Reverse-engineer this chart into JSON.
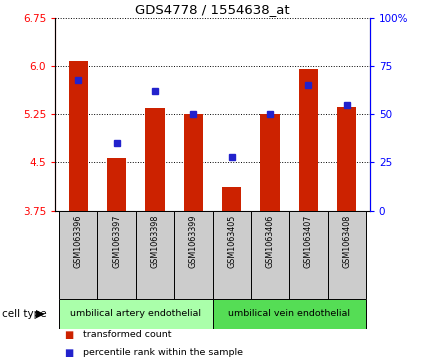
{
  "title": "GDS4778 / 1554638_at",
  "samples": [
    "GSM1063396",
    "GSM1063397",
    "GSM1063398",
    "GSM1063399",
    "GSM1063405",
    "GSM1063406",
    "GSM1063407",
    "GSM1063408"
  ],
  "transformed_counts": [
    6.08,
    4.57,
    5.35,
    5.25,
    4.12,
    5.25,
    5.95,
    5.37
  ],
  "percentile_ranks": [
    68,
    35,
    62,
    50,
    28,
    50,
    65,
    55
  ],
  "ylim_left": [
    3.75,
    6.75
  ],
  "yticks_left": [
    3.75,
    4.5,
    5.25,
    6.0,
    6.75
  ],
  "ylim_right": [
    0,
    100
  ],
  "yticks_right": [
    0,
    25,
    50,
    75,
    100
  ],
  "ytick_labels_right": [
    "0",
    "25",
    "50",
    "75",
    "100%"
  ],
  "bar_color": "#cc2200",
  "dot_color": "#2222cc",
  "bar_bottom": 3.75,
  "cell_type_groups": [
    {
      "label": "umbilical artery endothelial",
      "start": 0,
      "end": 4,
      "color": "#aaffaa"
    },
    {
      "label": "umbilical vein endothelial",
      "start": 4,
      "end": 8,
      "color": "#55dd55"
    }
  ],
  "legend_labels": [
    "transformed count",
    "percentile rank within the sample"
  ],
  "legend_colors": [
    "#cc2200",
    "#2222cc"
  ],
  "cell_type_label": "cell type",
  "bar_width": 0.5,
  "label_box_color": "#cccccc",
  "n_samples": 8
}
